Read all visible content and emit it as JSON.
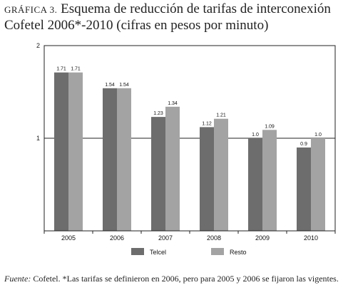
{
  "title": {
    "prefix": "GRÁFICA 3.",
    "line1": "Esquema de reducción de tarifas de interconexión",
    "line2": "Cofetel 2006*-2010 (cifras en pesos por minuto)"
  },
  "chart_data": {
    "type": "bar",
    "categories": [
      "2005",
      "2006",
      "2007",
      "2008",
      "2009",
      "2010"
    ],
    "series": [
      {
        "name": "Telcel",
        "values": [
          1.71,
          1.54,
          1.23,
          1.12,
          1.0,
          0.9
        ],
        "labels": [
          "1.71",
          "1.54",
          "1.23",
          "1.12",
          "1.0",
          "0.9"
        ],
        "color": "#6d6d6d"
      },
      {
        "name": "Resto",
        "values": [
          1.71,
          1.54,
          1.34,
          1.21,
          1.09,
          1.0
        ],
        "labels": [
          "1.71",
          "1.54",
          "1.34",
          "1.21",
          "1.09",
          "1.0"
        ],
        "color": "#a3a3a3"
      }
    ],
    "ylim": [
      0,
      2
    ],
    "yticks": [
      1,
      2
    ],
    "ytick_labels": [
      "1",
      "2"
    ],
    "grid": true,
    "legend_position": "bottom-center"
  },
  "source": {
    "label": "Fuente:",
    "text": "Cofetel. *Las tarifas se definieron en 2006, pero para 2005 y 2006 se fijaron las vigentes."
  }
}
